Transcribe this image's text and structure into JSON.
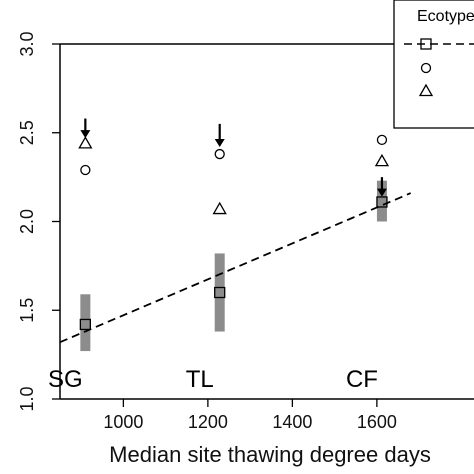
{
  "chart_data": {
    "type": "scatter",
    "xlabel": "Median site thawing degree days",
    "x_ticks": [
      1000,
      1200,
      1400,
      1600
    ],
    "y_ticks": [
      "1.0",
      "1.5",
      "2.0",
      "2.5",
      "3.0"
    ],
    "y_tick_values": [
      1.0,
      1.5,
      2.0,
      2.5,
      3.0
    ],
    "xlim": [
      850,
      1680
    ],
    "ylim": [
      1.0,
      3.0
    ],
    "legend": {
      "title": "Ecotype",
      "placement": "top-right"
    },
    "sites": [
      {
        "label": "SG",
        "x": 910
      },
      {
        "label": "TL",
        "x": 1228
      },
      {
        "label": "CF",
        "x": 1612
      }
    ],
    "regression_line": {
      "style": "dashed",
      "x": [
        850,
        1680
      ],
      "y": [
        1.32,
        2.16
      ]
    },
    "series": [
      {
        "marker": "square",
        "points": [
          {
            "x": 910,
            "y": 1.42,
            "ci": [
              1.27,
              1.59
            ]
          },
          {
            "x": 1228,
            "y": 1.6,
            "ci": [
              1.38,
              1.82
            ]
          },
          {
            "x": 1612,
            "y": 2.11,
            "ci": [
              2.0,
              2.23
            ]
          }
        ]
      },
      {
        "marker": "circle",
        "points": [
          {
            "x": 910,
            "y": 2.29
          },
          {
            "x": 1228,
            "y": 2.38
          },
          {
            "x": 1612,
            "y": 2.46
          }
        ]
      },
      {
        "marker": "triangle",
        "points": [
          {
            "x": 910,
            "y": 2.44
          },
          {
            "x": 1228,
            "y": 2.07
          },
          {
            "x": 1612,
            "y": 2.34
          }
        ]
      }
    ],
    "arrows": [
      {
        "x": 910,
        "y_from": 2.58,
        "y_to": 2.47
      },
      {
        "x": 1228,
        "y_from": 2.55,
        "y_to": 2.42
      },
      {
        "x": 1612,
        "y_from": 2.25,
        "y_to": 2.14
      }
    ],
    "colors": {
      "ci_bar": "#8c8c8c",
      "ink": "#000000"
    }
  }
}
